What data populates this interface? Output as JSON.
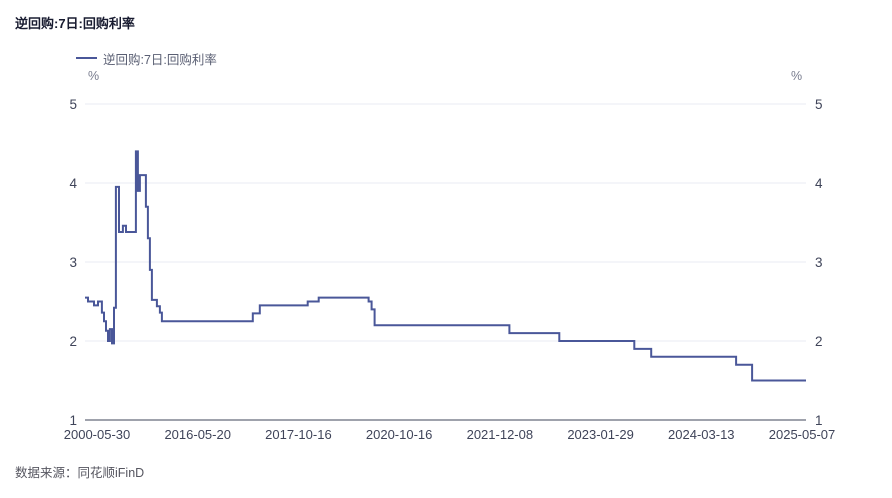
{
  "header": {
    "title": "逆回购:7日:回购利率"
  },
  "legend": {
    "label": "逆回购:7日:回购利率"
  },
  "footer": {
    "source_label": "数据来源：同花顺iFinD"
  },
  "colors": {
    "line": "#4a5799",
    "grid": "#e9ebf3",
    "axis": "#3f4459",
    "tick_text": "#3f4459",
    "title_text": "#181b30",
    "legend_text": "#5a5f73",
    "unit_text": "#787c8e",
    "footer_text": "#55555f",
    "background": "#ffffff"
  },
  "chart_data": {
    "type": "line",
    "step": true,
    "title": "逆回购:7日:回购利率",
    "unit_left": "%",
    "unit_right": "%",
    "ylim": [
      1,
      5
    ],
    "yticks": [
      1,
      2,
      3,
      4,
      5
    ],
    "grid": "horizontal",
    "legend_position": "top-left",
    "xticklabels": [
      "2000-05-30",
      "2016-05-20",
      "2017-10-16",
      "2020-10-16",
      "2021-12-08",
      "2023-01-29",
      "2024-03-13",
      "2025-05-07"
    ],
    "series": [
      {
        "name": "逆回购:7日:回购利率",
        "color": "#4a5799",
        "points_note": "pairs of [position along x-axis 0..1, rate %]; value holds (step) until next pair",
        "points": [
          [
            0.0,
            2.55
          ],
          [
            0.0042,
            2.5
          ],
          [
            0.0125,
            2.45
          ],
          [
            0.018,
            2.5
          ],
          [
            0.0235,
            2.36
          ],
          [
            0.0263,
            2.25
          ],
          [
            0.0291,
            2.13
          ],
          [
            0.0319,
            2.0
          ],
          [
            0.0346,
            2.15
          ],
          [
            0.0374,
            1.97
          ],
          [
            0.0402,
            2.42
          ],
          [
            0.0429,
            3.95
          ],
          [
            0.0471,
            3.38
          ],
          [
            0.0526,
            3.46
          ],
          [
            0.0568,
            3.38
          ],
          [
            0.0706,
            4.4
          ],
          [
            0.0734,
            3.9
          ],
          [
            0.0762,
            4.1
          ],
          [
            0.0845,
            3.7
          ],
          [
            0.0872,
            3.3
          ],
          [
            0.09,
            2.9
          ],
          [
            0.0928,
            2.52
          ],
          [
            0.0997,
            2.44
          ],
          [
            0.1039,
            2.36
          ],
          [
            0.1066,
            2.25
          ],
          [
            0.2327,
            2.35
          ],
          [
            0.2424,
            2.45
          ],
          [
            0.3089,
            2.5
          ],
          [
            0.3241,
            2.55
          ],
          [
            0.3934,
            2.5
          ],
          [
            0.3975,
            2.4
          ],
          [
            0.4017,
            2.2
          ],
          [
            0.5886,
            2.1
          ],
          [
            0.6579,
            2.0
          ],
          [
            0.7618,
            1.9
          ],
          [
            0.7853,
            1.8
          ],
          [
            0.903,
            1.7
          ],
          [
            0.9252,
            1.5
          ],
          [
            1.0,
            1.5
          ]
        ]
      }
    ]
  }
}
